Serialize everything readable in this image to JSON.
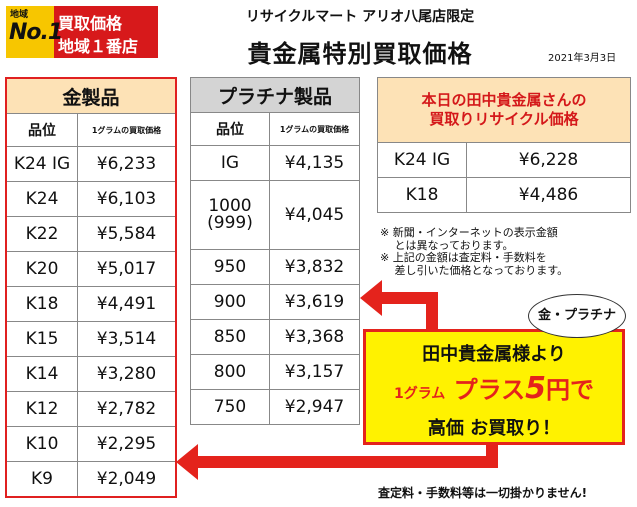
{
  "badge": {
    "small": "地域",
    "no1": "No.1",
    "line1": "買取価格",
    "line2": "地域１番店"
  },
  "header": {
    "store": "リサイクルマート アリオ八尾店限定",
    "title": "貴金属特別買取価格",
    "date": "2021年3月3日"
  },
  "gold": {
    "title": "金製品",
    "col1": "品位",
    "col2": "1グラムの買取価格",
    "rows": [
      {
        "grade": "K24 IG",
        "price": "¥6,233"
      },
      {
        "grade": "K24",
        "price": "¥6,103"
      },
      {
        "grade": "K22",
        "price": "¥5,584"
      },
      {
        "grade": "K20",
        "price": "¥5,017"
      },
      {
        "grade": "K18",
        "price": "¥4,491"
      },
      {
        "grade": "K15",
        "price": "¥3,514"
      },
      {
        "grade": "K14",
        "price": "¥3,280"
      },
      {
        "grade": "K12",
        "price": "¥2,782"
      },
      {
        "grade": "K10",
        "price": "¥2,295"
      },
      {
        "grade": "K9",
        "price": "¥2,049"
      }
    ]
  },
  "platinum": {
    "title": "プラチナ製品",
    "col1": "品位",
    "col2": "1グラムの買取価格",
    "rows": [
      {
        "grade": "IG",
        "price": "¥4,135"
      },
      {
        "grade": "1000\n(999)",
        "price": "¥4,045"
      },
      {
        "grade": "950",
        "price": "¥3,832"
      },
      {
        "grade": "900",
        "price": "¥3,619"
      },
      {
        "grade": "850",
        "price": "¥3,368"
      },
      {
        "grade": "800",
        "price": "¥3,157"
      },
      {
        "grade": "750",
        "price": "¥2,947"
      }
    ]
  },
  "today": {
    "title_line1": "本日の田中貴金属さんの",
    "title_line2": "買取りリサイクル価格",
    "rows": [
      {
        "grade": "K24 IG",
        "price": "¥6,228"
      },
      {
        "grade": "K18",
        "price": "¥4,486"
      }
    ]
  },
  "notes": "※ 新聞・インターネットの表示金額\n　 とは異なっております。\n※ 上記の金額は査定料・手数料を\n　 差し引いた価格となっております。",
  "bubble": "金・プラチナ",
  "promo": {
    "line1": "田中貴金属様より",
    "gram": "1グラム",
    "plus": "プラス",
    "amount": "5",
    "yen": "円で",
    "line3": "高価 お買取り！"
  },
  "footer": "査定料・手数料等は一切掛かりません!",
  "colors": {
    "red": "#e4231c",
    "yellow": "#fff200",
    "gold_header": "#fde2b6",
    "plat_header": "#d4d4d4"
  }
}
